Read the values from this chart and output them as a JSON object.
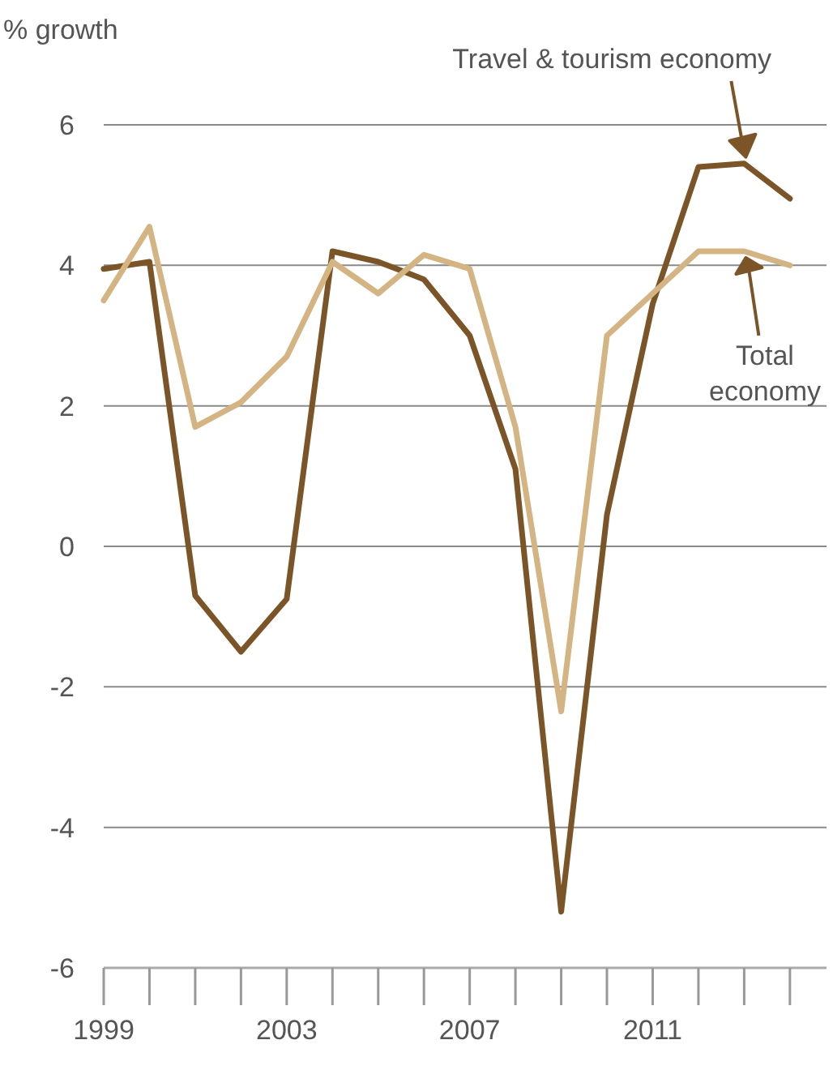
{
  "chart_data": {
    "type": "line",
    "ylabel": "% growth",
    "x": [
      1999,
      2000,
      2001,
      2002,
      2003,
      2004,
      2005,
      2006,
      2007,
      2008,
      2009,
      2010,
      2011,
      2012,
      2013,
      2014
    ],
    "series": [
      {
        "color": "#7b5428",
        "values": [
          3.95,
          4.05,
          -0.7,
          -1.5,
          -0.75,
          4.2,
          4.05,
          3.8,
          3.0,
          1.1,
          -5.2,
          0.45,
          3.45,
          5.4,
          5.45,
          4.95
        ]
      },
      {
        "color": "#d4b483",
        "values": [
          3.5,
          4.55,
          1.7,
          2.05,
          2.7,
          4.05,
          3.6,
          4.15,
          3.95,
          1.7,
          -2.35,
          3.0,
          3.6,
          4.2,
          4.2,
          4.0
        ]
      }
    ],
    "xlim": [
      1999,
      2014.8
    ],
    "xticks": [
      1999,
      2003,
      2007,
      2011
    ],
    "annotations": [
      "Travel & tourism economy",
      "Total economy"
    ],
    "ylim": [
      -6,
      6
    ],
    "yticks": [
      -6,
      -4,
      -2,
      0,
      2,
      4,
      6
    ],
    "grid": "y",
    "line_style": "solid",
    "marker": "none"
  }
}
